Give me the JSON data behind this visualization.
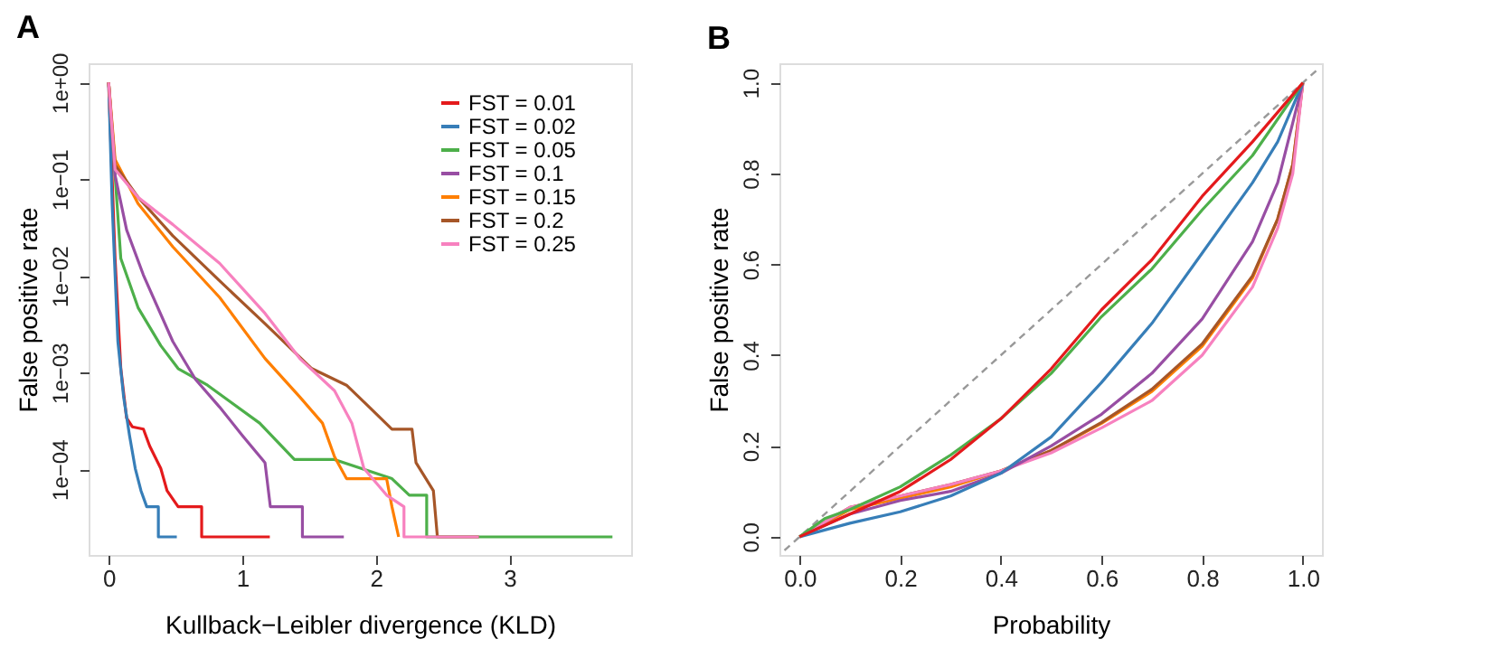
{
  "chart_data": [
    {
      "type": "line",
      "title": "A",
      "xlabel": "Kullback−Leibler divergence (KLD)",
      "ylabel": "False positive rate",
      "log": true,
      "grid": false,
      "legend": "top right",
      "xlim": [
        -0.15,
        3.91
      ],
      "xticks": [
        0,
        1,
        2,
        3
      ],
      "ylim": [
        1.3e-05,
        1.58
      ],
      "yticks": [
        {
          "value": 1,
          "label": "1e+00"
        },
        {
          "value": 0.1,
          "label": "1e−01"
        },
        {
          "value": 0.01,
          "label": "1e−02"
        },
        {
          "value": 0.001,
          "label": "1e−03"
        },
        {
          "value": 0.0001,
          "label": "1e−04"
        }
      ],
      "series": [
        {
          "name": "FST = 0.01",
          "color": "#e41a1c",
          "x": [
            0,
            0.048,
            0.091,
            0.134,
            0.177,
            0.26,
            0.307,
            0.39,
            0.437,
            0.52,
            0.696,
            0.696,
            1.206
          ],
          "values": [
            1,
            0.0151,
            0.0011,
            0.00034,
            0.000275,
            0.00026,
            0.000174,
            0.000102,
            6e-05,
            4.1e-05,
            4.1e-05,
            2e-05,
            2e-05
          ]
        },
        {
          "name": "FST = 0.02",
          "color": "#377eb8",
          "x": [
            0,
            0.026,
            0.069,
            0.112,
            0.156,
            0.199,
            0.242,
            0.285,
            0.372,
            0.372,
            0.51
          ],
          "values": [
            1,
            0.056,
            0.0021,
            0.00056,
            0.000224,
            0.000102,
            6e-05,
            4.1e-05,
            4.1e-05,
            2e-05,
            2e-05
          ]
        },
        {
          "name": "FST = 0.05",
          "color": "#4daf4a",
          "x": [
            0,
            0.091,
            0.22,
            0.39,
            0.52,
            0.74,
            0.91,
            1.13,
            1.39,
            1.69,
            2.12,
            2.25,
            2.38,
            2.38,
            3.77
          ],
          "values": [
            1,
            0.0151,
            0.0047,
            0.0019,
            0.0011,
            0.00074,
            0.0005,
            0.0003,
            0.000126,
            0.000126,
            8e-05,
            5.4e-05,
            5.4e-05,
            2e-05,
            2e-05
          ]
        },
        {
          "name": "FST = 0.1",
          "color": "#984ea3",
          "x": [
            0,
            0.048,
            0.134,
            0.26,
            0.48,
            0.65,
            0.83,
            1.0,
            1.17,
            1.21,
            1.45,
            1.45,
            1.76
          ],
          "values": [
            1,
            0.11,
            0.03,
            0.0102,
            0.0021,
            0.00085,
            0.00044,
            0.000224,
            0.000117,
            4.1e-05,
            4.1e-05,
            2e-05,
            2e-05
          ]
        },
        {
          "name": "FST = 0.15",
          "color": "#ff7f00",
          "x": [
            0,
            0.048,
            0.22,
            0.48,
            0.83,
            1.17,
            1.43,
            1.6,
            1.69,
            1.78,
            2.08,
            2.12,
            2.17
          ],
          "values": [
            1,
            0.16,
            0.056,
            0.02,
            0.006,
            0.0014,
            0.00056,
            0.0003,
            0.000135,
            8e-05,
            8e-05,
            4.1e-05,
            2e-05
          ]
        },
        {
          "name": "FST = 0.2",
          "color": "#a65628",
          "x": [
            0,
            0.048,
            0.22,
            0.48,
            0.83,
            1.17,
            1.52,
            1.78,
            1.95,
            2.12,
            2.27,
            2.3,
            2.43,
            2.46,
            2.77
          ],
          "values": [
            1,
            0.14,
            0.065,
            0.026,
            0.0089,
            0.0032,
            0.0011,
            0.00074,
            0.00044,
            0.00026,
            0.00026,
            0.000117,
            6e-05,
            2e-05,
            2e-05
          ]
        },
        {
          "name": "FST = 0.25",
          "color": "#f781bf",
          "x": [
            0,
            0.048,
            0.22,
            0.48,
            0.83,
            1.17,
            1.43,
            1.69,
            1.82,
            1.91,
            2.08,
            2.21,
            2.21,
            2.77
          ],
          "values": [
            1,
            0.126,
            0.065,
            0.034,
            0.0135,
            0.0041,
            0.0014,
            0.00065,
            0.0003,
            0.000102,
            5.4e-05,
            4.1e-05,
            2e-05,
            2e-05
          ]
        }
      ]
    },
    {
      "type": "line",
      "title": "B",
      "xlabel": "Probability",
      "ylabel": "False positive rate",
      "grid": false,
      "xlim": [
        -0.04,
        1.038
      ],
      "ylim": [
        -0.04,
        1.043
      ],
      "xticks": [
        {
          "value": 0,
          "label": "0.0"
        },
        0.2,
        0.4,
        0.6,
        0.8,
        {
          "value": 1,
          "label": "1.0"
        }
      ],
      "yticks": [
        {
          "value": 0,
          "label": "0.0"
        },
        0.2,
        0.4,
        0.6,
        0.8,
        {
          "value": 1,
          "label": "1.0"
        }
      ],
      "series": [
        {
          "color": "#999999",
          "line_style": "dashed",
          "x": [
            -0.03,
            1.03
          ],
          "values": [
            -0.03,
            1.03
          ]
        },
        {
          "color": "#ff7f00",
          "x": [
            0,
            0.1,
            0.2,
            0.3,
            0.4,
            0.5,
            0.6,
            0.7,
            0.8,
            0.9,
            0.95,
            0.98,
            1
          ],
          "values": [
            0,
            0.06,
            0.085,
            0.11,
            0.145,
            0.19,
            0.25,
            0.32,
            0.42,
            0.57,
            0.7,
            0.82,
            1
          ]
        },
        {
          "color": "#a65628",
          "x": [
            0,
            0.1,
            0.2,
            0.3,
            0.4,
            0.5,
            0.6,
            0.7,
            0.8,
            0.9,
            0.95,
            0.98,
            1
          ],
          "values": [
            0,
            0.065,
            0.09,
            0.115,
            0.145,
            0.19,
            0.252,
            0.325,
            0.425,
            0.575,
            0.7,
            0.82,
            1
          ]
        },
        {
          "color": "#f781bf",
          "x": [
            0,
            0.1,
            0.2,
            0.3,
            0.4,
            0.5,
            0.6,
            0.7,
            0.8,
            0.9,
            0.95,
            0.98,
            1
          ],
          "values": [
            0,
            0.065,
            0.09,
            0.115,
            0.145,
            0.185,
            0.24,
            0.3,
            0.4,
            0.55,
            0.68,
            0.8,
            1
          ]
        },
        {
          "color": "#984ea3",
          "x": [
            0,
            0.1,
            0.2,
            0.3,
            0.4,
            0.5,
            0.6,
            0.7,
            0.8,
            0.9,
            0.95,
            1
          ],
          "values": [
            0,
            0.05,
            0.08,
            0.1,
            0.14,
            0.2,
            0.27,
            0.36,
            0.48,
            0.65,
            0.78,
            1
          ]
        },
        {
          "color": "#377eb8",
          "x": [
            0,
            0.1,
            0.2,
            0.3,
            0.4,
            0.5,
            0.6,
            0.7,
            0.8,
            0.9,
            0.95,
            1
          ],
          "values": [
            0,
            0.03,
            0.055,
            0.09,
            0.14,
            0.22,
            0.34,
            0.47,
            0.625,
            0.78,
            0.87,
            1
          ]
        },
        {
          "color": "#4daf4a",
          "x": [
            0,
            0.05,
            0.1,
            0.2,
            0.3,
            0.4,
            0.5,
            0.6,
            0.7,
            0.8,
            0.9,
            1
          ],
          "values": [
            0,
            0.04,
            0.06,
            0.11,
            0.18,
            0.26,
            0.36,
            0.485,
            0.59,
            0.72,
            0.84,
            1
          ]
        },
        {
          "color": "#e41a1c",
          "x": [
            0,
            0.1,
            0.2,
            0.3,
            0.4,
            0.5,
            0.6,
            0.7,
            0.8,
            0.9,
            1
          ],
          "values": [
            0,
            0.05,
            0.1,
            0.17,
            0.26,
            0.37,
            0.5,
            0.61,
            0.75,
            0.87,
            1
          ]
        }
      ]
    }
  ]
}
